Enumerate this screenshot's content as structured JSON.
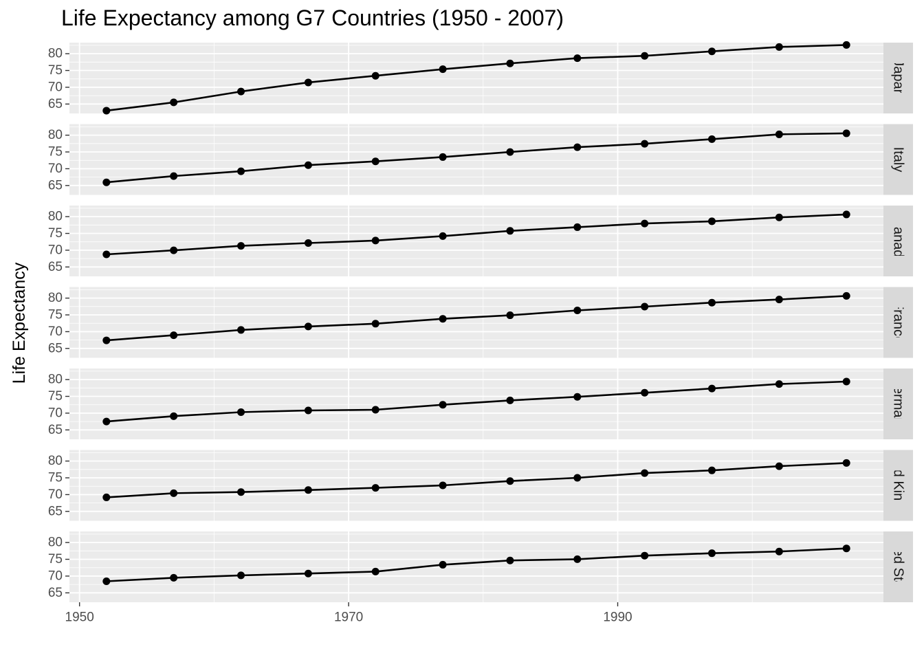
{
  "chart_data": {
    "type": "line",
    "title": "Life Expectancy among G7 Countries (1950 - 2007)",
    "xlabel": "",
    "ylabel": "Life Expectancy",
    "facet": "rows",
    "x": [
      1952,
      1957,
      1962,
      1967,
      1972,
      1977,
      1982,
      1987,
      1992,
      1997,
      2002,
      2007
    ],
    "xlim": [
      1949.25,
      2009.75
    ],
    "ylim": [
      62.2,
      83.3
    ],
    "x_ticks": [
      1950,
      1970,
      1990
    ],
    "x_tick_labels": [
      "1950",
      "1970",
      "1990"
    ],
    "y_ticks": [
      65,
      70,
      75,
      80
    ],
    "y_tick_labels": [
      "65",
      "70",
      "75",
      "80"
    ],
    "grid": true,
    "legend": "none",
    "colors": {
      "panel_background": "#ebebeb",
      "grid_major": "#ffffff",
      "strip_background": "#d9d9d9",
      "line": "#000000",
      "point": "#000000"
    },
    "series": [
      {
        "name": "Japan",
        "strip_label": "Japan",
        "values": [
          63.03,
          65.5,
          68.73,
          71.43,
          73.42,
          75.38,
          77.11,
          78.67,
          79.36,
          80.69,
          82.0,
          82.6
        ]
      },
      {
        "name": "Italy",
        "strip_label": "Italy",
        "values": [
          65.94,
          67.81,
          69.24,
          71.06,
          72.19,
          73.48,
          74.98,
          76.42,
          77.44,
          78.82,
          80.24,
          80.55
        ]
      },
      {
        "name": "Canada",
        "strip_label": "Canada",
        "values": [
          68.75,
          69.96,
          71.3,
          72.13,
          72.88,
          74.21,
          75.76,
          76.86,
          77.95,
          78.61,
          79.77,
          80.65
        ]
      },
      {
        "name": "France",
        "strip_label": "France",
        "values": [
          67.41,
          68.93,
          70.51,
          71.55,
          72.38,
          73.83,
          74.89,
          76.34,
          77.46,
          78.64,
          79.59,
          80.66
        ]
      },
      {
        "name": "Germany",
        "strip_label": "Germany",
        "values": [
          67.5,
          69.1,
          70.3,
          70.8,
          71.0,
          72.5,
          73.8,
          74.85,
          76.07,
          77.34,
          78.67,
          79.41
        ]
      },
      {
        "name": "United Kingdom",
        "strip_label": "ited Kingd",
        "values": [
          69.18,
          70.42,
          70.76,
          71.36,
          72.01,
          72.76,
          74.04,
          75.01,
          76.42,
          77.22,
          78.47,
          79.43
        ]
      },
      {
        "name": "United States",
        "strip_label": "nited State",
        "values": [
          68.44,
          69.49,
          70.21,
          70.76,
          71.34,
          73.38,
          74.65,
          75.02,
          76.09,
          76.81,
          77.31,
          78.24
        ]
      }
    ]
  }
}
